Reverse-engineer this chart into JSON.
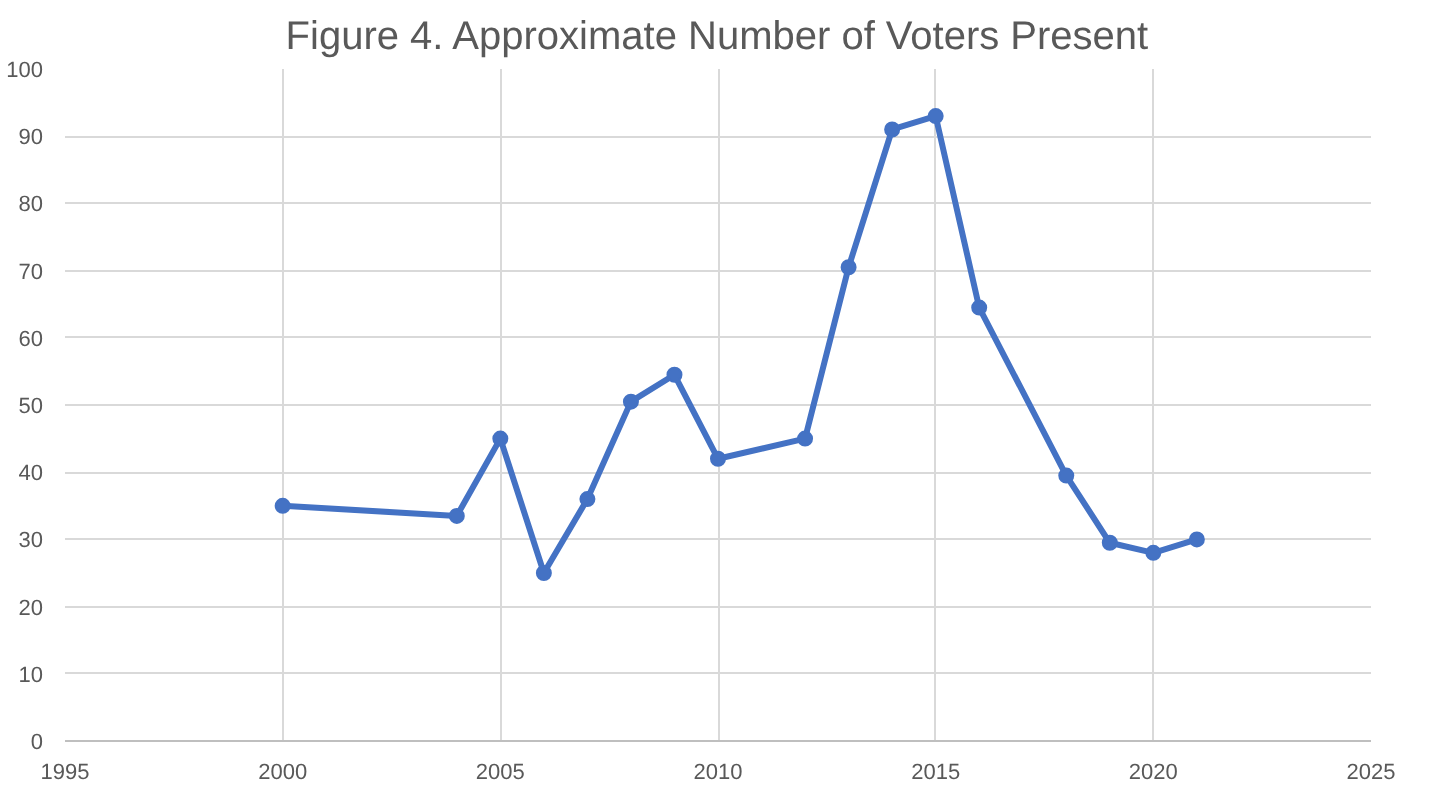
{
  "chart_data": {
    "type": "line",
    "title": "Figure 4. Approximate Number of Voters Present",
    "x": [
      2000,
      2004,
      2005,
      2006,
      2007,
      2008,
      2009,
      2010,
      2012,
      2013,
      2014,
      2015,
      2016,
      2018,
      2019,
      2020,
      2021
    ],
    "series": [
      {
        "color": "#4472c4",
        "values": [
          35,
          33.5,
          45,
          25,
          36,
          50.5,
          54.5,
          42,
          45,
          70.5,
          91,
          93,
          64.5,
          39.5,
          29.5,
          28,
          30
        ]
      }
    ],
    "xlim": [
      1995,
      2025
    ],
    "xticks": [
      1995,
      2000,
      2005,
      2010,
      2015,
      2020,
      2025
    ],
    "ylim": [
      0,
      100
    ],
    "yticks": [
      0,
      10,
      20,
      30,
      40,
      50,
      60,
      70,
      80,
      90,
      100
    ],
    "grid": true,
    "marker": "circle",
    "line_style": "solid"
  }
}
